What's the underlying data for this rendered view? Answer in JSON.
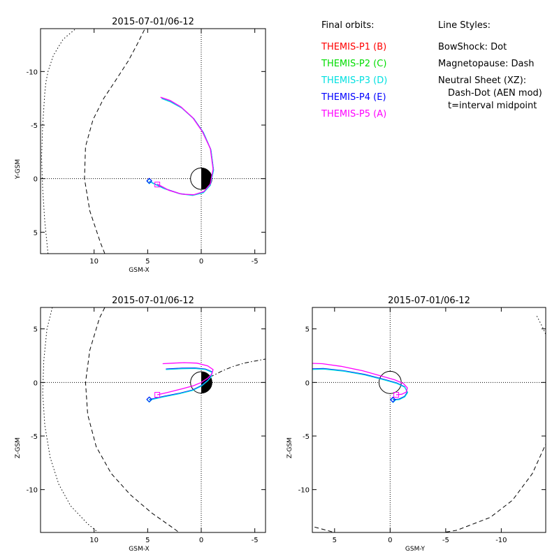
{
  "legend": {
    "orbits_heading": "Final orbits:",
    "probes": [
      {
        "label": "THEMIS-P1 (B)",
        "color": "#ff0000"
      },
      {
        "label": "THEMIS-P2 (C)",
        "color": "#00dd00"
      },
      {
        "label": "THEMIS-P3 (D)",
        "color": "#00e0e0"
      },
      {
        "label": "THEMIS-P4 (E)",
        "color": "#0000ff"
      },
      {
        "label": "THEMIS-P5 (A)",
        "color": "#ff00ff"
      }
    ],
    "styles_heading": "Line Styles:",
    "styles": [
      "BowShock: Dot",
      "Magnetopause: Dash",
      "Neutral Sheet (XZ):",
      "Dash-Dot (AEN mod)",
      "t=interval midpoint"
    ]
  },
  "chart_data": [
    {
      "type": "line",
      "title": "2015-07-01/06-12",
      "xlabel": "GSM-X",
      "ylabel": "Y-GSM",
      "xlim": [
        15,
        -6
      ],
      "ylim": [
        7,
        -14
      ],
      "xticks": [
        10,
        5,
        0,
        -5
      ],
      "yticks": [
        5,
        0,
        -5,
        -10
      ],
      "series": [
        {
          "color": "#0000ff",
          "x": [
            4.85,
            3.5,
            2.0,
            0.8,
            -0.2,
            -0.85,
            -1.15,
            -0.9,
            -0.2,
            0.7,
            1.8,
            2.9,
            3.7
          ],
          "y": [
            0.25,
            0.9,
            1.4,
            1.55,
            1.3,
            0.6,
            -0.8,
            -2.7,
            -4.3,
            -5.6,
            -6.6,
            -7.2,
            -7.5
          ]
        },
        {
          "color": "#00e0e0",
          "x": [
            4.85,
            3.5,
            2.0,
            0.8,
            -0.2,
            -0.85,
            -1.15,
            -0.9,
            -0.2,
            0.7,
            1.8,
            2.9,
            3.7
          ],
          "y": [
            0.27,
            0.92,
            1.42,
            1.57,
            1.32,
            0.62,
            -0.78,
            -2.68,
            -4.28,
            -5.58,
            -6.58,
            -7.18,
            -7.48
          ]
        },
        {
          "color": "#ff00ff",
          "x": [
            4.1,
            3.0,
            1.8,
            0.7,
            -0.25,
            -0.85,
            -1.1,
            -0.85,
            -0.1,
            0.8,
            1.9,
            2.9,
            3.8
          ],
          "y": [
            0.5,
            1.1,
            1.45,
            1.5,
            1.2,
            0.5,
            -0.9,
            -2.8,
            -4.4,
            -5.7,
            -6.7,
            -7.3,
            -7.6
          ]
        }
      ],
      "markers": [
        {
          "color": "#00e0e0",
          "shape": "diamond",
          "x": 4.85,
          "y": 0.25
        },
        {
          "color": "#0000ff",
          "shape": "diamond",
          "x": 4.85,
          "y": 0.2
        },
        {
          "color": "#ff00ff",
          "shape": "square",
          "x": 4.1,
          "y": 0.55
        }
      ],
      "boundaries": [
        {
          "name": "BowShock",
          "style": "dot",
          "x": [
            14.3,
            14.6,
            14.8,
            14.9,
            14.8,
            14.6,
            14.5,
            14.3,
            13.8,
            12.9,
            11.1
          ],
          "y": [
            7,
            4,
            1,
            -2,
            -5,
            -8,
            -9,
            -10,
            -11.5,
            -13,
            -14.5
          ]
        },
        {
          "name": "Magnetopause",
          "style": "dash",
          "x": [
            9.0,
            9.4,
            10.4,
            10.9,
            10.8,
            10.1,
            9.1,
            8.1,
            6.8,
            6.0,
            5.0
          ],
          "y": [
            7,
            6,
            3,
            0,
            -3,
            -5.5,
            -7.5,
            -9,
            -11,
            -12.5,
            -14.5
          ]
        }
      ],
      "earth": {
        "x": 0,
        "y": 0,
        "r": 1
      }
    },
    {
      "type": "line",
      "title": "2015-07-01/06-12",
      "xlabel": "GSM-X",
      "ylabel": "Z-GSM",
      "xlim": [
        15,
        -6
      ],
      "ylim": [
        -14,
        7
      ],
      "xticks": [
        10,
        5,
        0,
        -5
      ],
      "yticks": [
        5,
        0,
        -5,
        -10
      ],
      "series": [
        {
          "color": "#0000ff",
          "x": [
            4.85,
            3.5,
            2.0,
            0.8,
            0.0,
            -0.6,
            -0.95,
            -1.0,
            -0.4,
            0.6,
            1.8,
            3.3
          ],
          "y": [
            -1.6,
            -1.3,
            -1.0,
            -0.7,
            -0.3,
            0.2,
            0.6,
            1.0,
            1.25,
            1.35,
            1.33,
            1.25
          ]
        },
        {
          "color": "#00e0e0",
          "x": [
            4.85,
            3.5,
            2.0,
            0.8,
            0.0,
            -0.6,
            -0.95,
            -1.0,
            -0.4,
            0.6,
            1.8,
            3.3
          ],
          "y": [
            -1.65,
            -1.35,
            -1.05,
            -0.75,
            -0.35,
            0.15,
            0.55,
            0.95,
            1.2,
            1.3,
            1.28,
            1.2
          ]
        },
        {
          "color": "#ff00ff",
          "x": [
            4.1,
            3.0,
            1.8,
            0.7,
            0.0,
            -0.6,
            -1.0,
            -1.1,
            -0.6,
            0.4,
            1.6,
            2.6,
            3.6
          ],
          "y": [
            -1.15,
            -0.9,
            -0.6,
            -0.3,
            0.0,
            0.4,
            0.8,
            1.2,
            1.55,
            1.8,
            1.85,
            1.8,
            1.75
          ]
        }
      ],
      "markers": [
        {
          "color": "#00e0e0",
          "shape": "diamond",
          "x": 4.85,
          "y": -1.62
        },
        {
          "color": "#0000ff",
          "shape": "diamond",
          "x": 4.85,
          "y": -1.58
        },
        {
          "color": "#ff00ff",
          "shape": "square",
          "x": 4.1,
          "y": -1.15
        }
      ],
      "boundaries": [
        {
          "name": "BowShock",
          "style": "dot",
          "x": [
            13.9,
            14.4,
            14.7,
            14.8,
            14.6,
            14.1,
            13.3,
            12.2,
            10.6,
            9.0
          ],
          "y": [
            7,
            5,
            2,
            -1,
            -4,
            -7,
            -9.5,
            -11.5,
            -13.2,
            -14.5
          ]
        },
        {
          "name": "Magnetopause",
          "style": "dash",
          "x": [
            9.0,
            9.5,
            10.4,
            10.8,
            10.6,
            9.8,
            8.4,
            6.6,
            4.6,
            2.6,
            1.4
          ],
          "y": [
            7,
            6,
            3,
            0,
            -3,
            -6,
            -8.5,
            -10.5,
            -12.2,
            -13.6,
            -14.5
          ]
        },
        {
          "name": "Neutral Sheet",
          "style": "dashdot",
          "x": [
            -0.8,
            -2,
            -3,
            -4,
            -5,
            -6.1
          ],
          "y": [
            0.5,
            1.1,
            1.5,
            1.8,
            2.0,
            2.2
          ]
        }
      ],
      "earth": {
        "x": 0,
        "y": 0,
        "r": 1
      }
    },
    {
      "type": "line",
      "title": "2015-07-01/06-12",
      "xlabel": "GSM-Y",
      "ylabel": "Z-GSM",
      "xlim": [
        7,
        -14
      ],
      "ylim": [
        -14,
        7
      ],
      "xticks": [
        5,
        0,
        -5,
        -10
      ],
      "yticks": [
        5,
        0,
        -5,
        -10
      ],
      "series": [
        {
          "color": "#0000ff",
          "x": [
            -0.25,
            -0.8,
            -1.3,
            -1.55,
            -1.3,
            -0.6,
            0.6,
            2.3,
            4.2,
            6.0,
            7.5
          ],
          "y": [
            -1.6,
            -1.55,
            -1.3,
            -0.9,
            -0.4,
            -0.05,
            0.3,
            0.75,
            1.1,
            1.3,
            1.25
          ]
        },
        {
          "color": "#00e0e0",
          "x": [
            -0.27,
            -0.82,
            -1.32,
            -1.57,
            -1.32,
            -0.62,
            0.58,
            2.28,
            4.18,
            5.98,
            7.48
          ],
          "y": [
            -1.65,
            -1.6,
            -1.35,
            -0.95,
            -0.45,
            -0.1,
            0.25,
            0.7,
            1.05,
            1.25,
            1.2
          ]
        },
        {
          "color": "#ff00ff",
          "x": [
            -0.55,
            -1.05,
            -1.45,
            -1.55,
            -1.2,
            -0.4,
            0.8,
            2.5,
            4.4,
            6.1,
            7.6
          ],
          "y": [
            -1.15,
            -1.1,
            -0.9,
            -0.5,
            -0.1,
            0.25,
            0.6,
            1.1,
            1.5,
            1.75,
            1.8
          ]
        }
      ],
      "markers": [
        {
          "color": "#00e0e0",
          "shape": "diamond",
          "x": -0.27,
          "y": -1.65
        },
        {
          "color": "#0000ff",
          "shape": "diamond",
          "x": -0.25,
          "y": -1.6
        },
        {
          "color": "#ff00ff",
          "shape": "square",
          "x": -0.55,
          "y": -1.15
        }
      ],
      "boundaries": [
        {
          "name": "Magnetopause",
          "style": "dash",
          "x": [
            6.8,
            5,
            3,
            0,
            -3,
            -6,
            -9,
            -11,
            -12.8,
            -14.2
          ],
          "y": [
            -13.5,
            -14.0,
            -14.3,
            -14.5,
            -14.3,
            -13.8,
            -12.6,
            -11.0,
            -8.5,
            -5.3
          ]
        },
        {
          "name": "BowShock",
          "style": "dot",
          "x": [
            -13.2,
            -13.7,
            -14.2
          ],
          "y": [
            6.2,
            5.2,
            4.0
          ]
        }
      ],
      "earth": {
        "x": 0,
        "y": 0,
        "r": 1
      }
    }
  ]
}
